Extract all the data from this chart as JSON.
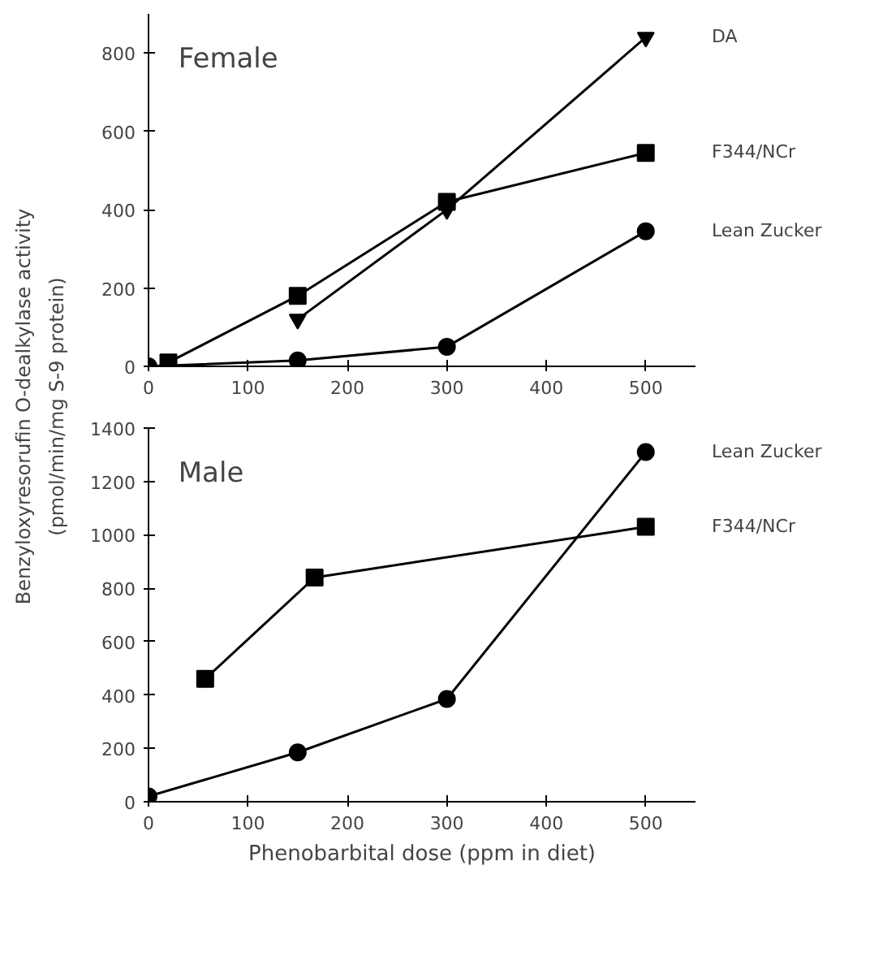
{
  "chart_data": [
    {
      "type": "line",
      "title": "Female",
      "ylabel": "Benzyloxyresorufin O‑dealkylase activity\n(pmol/min/mg S‑9 protein)",
      "xlim": [
        0,
        550
      ],
      "ylim": [
        0,
        900
      ],
      "xticks": [
        0,
        100,
        200,
        300,
        400,
        500
      ],
      "yticks": [
        0,
        200,
        400,
        600,
        800
      ],
      "series": [
        {
          "name": "DA",
          "color": "#000000",
          "marker": "triangle",
          "x": [
            150,
            300,
            500
          ],
          "values": [
            120,
            400,
            840
          ]
        },
        {
          "name": "F344/NCr",
          "color": "#000000",
          "marker": "square",
          "x": [
            20,
            150,
            300,
            500
          ],
          "values": [
            10,
            180,
            420,
            545
          ]
        },
        {
          "name": "Lean Zucker",
          "color": "#000000",
          "marker": "circle",
          "x": [
            0,
            150,
            300,
            500
          ],
          "values": [
            0,
            15,
            50,
            345
          ]
        }
      ]
    },
    {
      "type": "line",
      "title": "Male",
      "xlabel": "Phenobarbital dose (ppm in diet)",
      "xlim": [
        0,
        550
      ],
      "ylim": [
        0,
        1400
      ],
      "xticks": [
        0,
        100,
        200,
        300,
        400,
        500
      ],
      "yticks": [
        0,
        200,
        400,
        600,
        800,
        1000,
        1200,
        1400
      ],
      "series": [
        {
          "name": "Lean Zucker",
          "color": "#000000",
          "marker": "circle",
          "x": [
            0,
            150,
            300,
            500
          ],
          "values": [
            20,
            185,
            385,
            1310
          ]
        },
        {
          "name": "F344/NCr",
          "color": "#000000",
          "marker": "square",
          "x": [
            57,
            167,
            500
          ],
          "values": [
            460,
            840,
            1030
          ]
        }
      ]
    }
  ]
}
